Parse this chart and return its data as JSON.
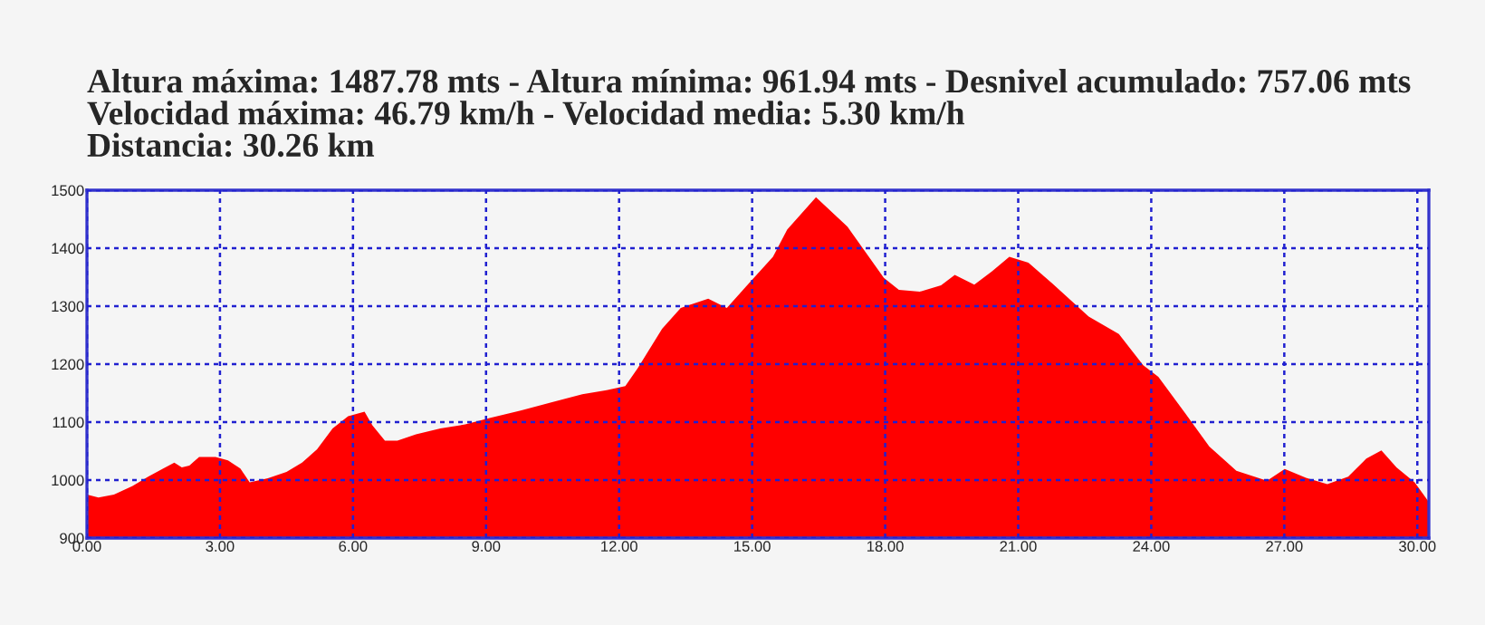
{
  "chart_data": {
    "type": "area",
    "title": "Altura máxima: 1487.78 mts - Altura mínima: 961.94 mts - Desnivel acumulado: 757.06 mts\nVelocidad máxima: 46.79 km/h - Velocidad media: 5.30 km/h\nDistancia: 30.26 km",
    "x": [
      0,
      0.26,
      0.61,
      1.03,
      1.38,
      1.72,
      1.97,
      2.14,
      2.31,
      2.53,
      2.9,
      3.18,
      3.46,
      3.67,
      4.08,
      4.5,
      4.85,
      5.19,
      5.54,
      5.89,
      6.26,
      6.44,
      6.72,
      7.0,
      7.42,
      7.97,
      8.53,
      9.08,
      9.78,
      10.47,
      11.17,
      11.72,
      12.14,
      12.42,
      12.97,
      13.39,
      14.01,
      14.43,
      14.85,
      15.47,
      15.79,
      16.44,
      17.15,
      17.97,
      18.31,
      18.78,
      19.26,
      19.57,
      20.01,
      20.41,
      20.8,
      21.23,
      21.77,
      22.59,
      23.27,
      23.82,
      24.16,
      24.77,
      25.31,
      25.92,
      26.61,
      27.01,
      27.49,
      27.97,
      28.44,
      28.85,
      29.19,
      29.53,
      29.94,
      30.26
    ],
    "series": [
      {
        "color": "#ff0000",
        "values": [
          975,
          970,
          975,
          990,
          1006,
          1020,
          1030,
          1022,
          1025,
          1040,
          1040,
          1034,
          1020,
          996,
          1003,
          1014,
          1030,
          1053,
          1089,
          1110,
          1118,
          1094,
          1068,
          1068,
          1079,
          1089,
          1096,
          1107,
          1120,
          1134,
          1148,
          1155,
          1162,
          1193,
          1261,
          1297,
          1313,
          1297,
          1333,
          1385,
          1432,
          1488,
          1437,
          1349,
          1328,
          1325,
          1336,
          1354,
          1337,
          1360,
          1385,
          1375,
          1339,
          1282,
          1252,
          1198,
          1178,
          1115,
          1058,
          1016,
          999,
          1019,
          1004,
          993,
          1006,
          1037,
          1051,
          1022,
          996,
          962
        ]
      }
    ],
    "xlim": [
      0,
      30.26
    ],
    "ylim": [
      900,
      1500
    ],
    "xticks": [
      {
        "value": 0,
        "label": "0.00"
      },
      {
        "value": 3,
        "label": "3.00"
      },
      {
        "value": 6,
        "label": "6.00"
      },
      {
        "value": 9,
        "label": "9.00"
      },
      {
        "value": 12,
        "label": "12.00"
      },
      {
        "value": 15,
        "label": "15.00"
      },
      {
        "value": 18,
        "label": "18.00"
      },
      {
        "value": 21,
        "label": "21.00"
      },
      {
        "value": 24,
        "label": "24.00"
      },
      {
        "value": 27,
        "label": "27.00"
      },
      {
        "value": 30,
        "label": "30.00"
      }
    ],
    "yticks": [
      900,
      1000,
      1100,
      1200,
      1300,
      1400,
      1500
    ],
    "grid": true,
    "legend": false
  }
}
